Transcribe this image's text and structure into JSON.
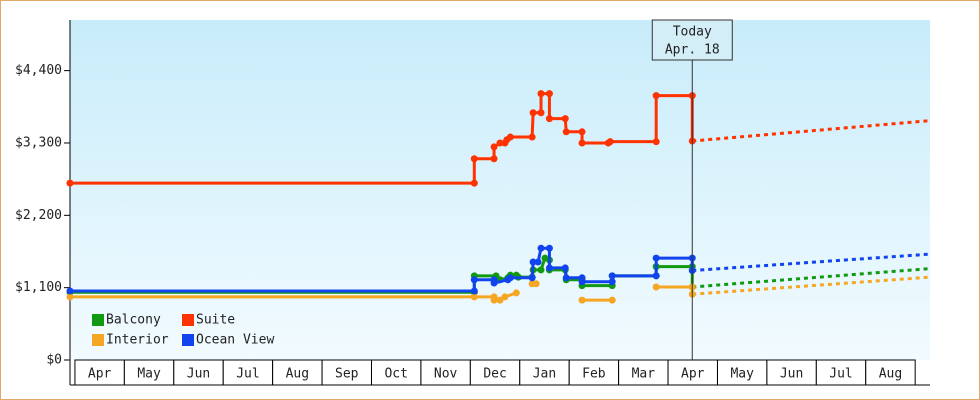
{
  "chart_data": {
    "type": "line",
    "categories": [
      "Apr",
      "May",
      "Jun",
      "Jul",
      "Aug",
      "Sep",
      "Oct",
      "Nov",
      "Dec",
      "Jan",
      "Feb",
      "Mar",
      "Apr",
      "May",
      "Jun",
      "Jul",
      "Aug"
    ],
    "xlim": [
      -0.1,
      17.3
    ],
    "ylim": [
      0,
      5170
    ],
    "yticks": [
      {
        "value": 0,
        "label": "$0"
      },
      {
        "value": 1100,
        "label": "$1,100"
      },
      {
        "value": 2200,
        "label": "$2,200"
      },
      {
        "value": 3300,
        "label": "$3,300"
      },
      {
        "value": 4400,
        "label": "$4,400"
      }
    ],
    "annotation": {
      "lines": [
        "Today",
        "Apr. 18"
      ],
      "x": 12.49
    },
    "legend": "lower left",
    "series": [
      {
        "name": "Balcony",
        "color": "#119911",
        "x": [
          -0.1,
          8.08,
          8.08,
          8.52,
          8.6,
          8.76,
          8.81,
          8.93,
          8.97,
          9.25,
          9.27,
          9.43,
          9.51,
          9.6,
          9.6,
          9.92,
          9.94,
          10.26,
          10.26,
          10.87,
          10.87,
          11.76,
          11.76,
          12.49,
          12.49
        ],
        "values": [
          1030,
          1030,
          1280,
          1280,
          1220,
          1250,
          1290,
          1290,
          1260,
          1260,
          1370,
          1370,
          1550,
          1520,
          1370,
          1370,
          1220,
          1220,
          1130,
          1130,
          1280,
          1280,
          1420,
          1420,
          1110
        ],
        "forecast": {
          "x": [
            12.49,
            17.3
          ],
          "values": [
            1110,
            1390
          ]
        }
      },
      {
        "name": "Suite",
        "color": "#ff3300",
        "x": [
          -0.1,
          8.08,
          8.08,
          8.48,
          8.48,
          8.6,
          8.7,
          8.74,
          8.81,
          9.25,
          9.27,
          9.43,
          9.43,
          9.6,
          9.6,
          9.92,
          9.94,
          10.26,
          10.26,
          10.79,
          10.83,
          11.76,
          11.76,
          12.49,
          12.49
        ],
        "values": [
          2690,
          2690,
          3060,
          3060,
          3240,
          3300,
          3300,
          3350,
          3390,
          3390,
          3760,
          3760,
          4050,
          4050,
          3670,
          3670,
          3470,
          3470,
          3300,
          3300,
          3320,
          3320,
          4020,
          4020,
          3330
        ],
        "forecast": {
          "x": [
            12.49,
            17.3
          ],
          "values": [
            3330,
            3640
          ]
        }
      },
      {
        "name": "Interior",
        "color": "#f5a623",
        "x": [
          -0.1,
          8.08,
          8.48,
          8.48,
          8.6,
          8.7,
          8.93,
          null,
          9.25,
          9.33,
          null,
          10.26,
          10.87,
          null,
          11.76,
          12.49,
          12.49
        ],
        "values": [
          960,
          960,
          960,
          910,
          910,
          960,
          1020,
          null,
          1160,
          1160,
          null,
          910,
          910,
          null,
          1110,
          1110,
          1000
        ],
        "forecast": {
          "x": [
            12.49,
            17.3
          ],
          "values": [
            1000,
            1260
          ]
        }
      },
      {
        "name": "Ocean View",
        "color": "#1144ee",
        "x": [
          -0.1,
          8.08,
          8.08,
          8.48,
          8.48,
          8.76,
          8.81,
          9.25,
          9.27,
          9.37,
          9.43,
          9.6,
          9.6,
          9.92,
          9.94,
          10.26,
          10.26,
          10.87,
          10.87,
          11.76,
          11.76,
          12.49,
          12.49
        ],
        "values": [
          1050,
          1050,
          1220,
          1220,
          1170,
          1220,
          1250,
          1250,
          1490,
          1490,
          1700,
          1700,
          1400,
          1400,
          1250,
          1250,
          1190,
          1190,
          1280,
          1280,
          1550,
          1550,
          1360
        ],
        "forecast": {
          "x": [
            12.49,
            17.3
          ],
          "values": [
            1360,
            1610
          ]
        }
      }
    ]
  }
}
